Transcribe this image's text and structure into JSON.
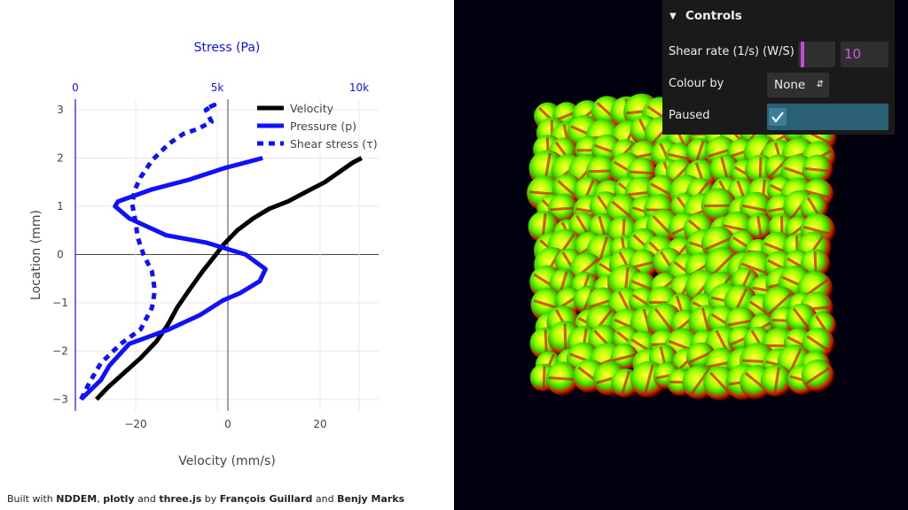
{
  "chart_data": {
    "type": "line",
    "xlabel": "Velocity (mm/s)",
    "ylabel": "Location (mm)",
    "x2label": "Stress (Pa)",
    "xlim": [
      -33,
      33
    ],
    "x2lim": [
      0,
      10000
    ],
    "ylim": [
      -3.1,
      3.1
    ],
    "x_ticks": [
      -20,
      0,
      20
    ],
    "x_tick_labels": [
      "−20",
      "0",
      "20"
    ],
    "x2_ticks": [
      0,
      5000,
      10000
    ],
    "x2_tick_labels": [
      "0",
      "5k",
      "10k"
    ],
    "y_ticks": [
      -3,
      -2,
      -1,
      0,
      1,
      2,
      3
    ],
    "y_tick_labels": [
      "−3",
      "−2",
      "−1",
      "0",
      "1",
      "2",
      "3"
    ],
    "legend_position": "top-right",
    "grid": true,
    "series": [
      {
        "name": "Velocity",
        "axis": "bottom",
        "color": "#000000",
        "style": "solid",
        "x": [
          -28.5,
          -26,
          -22.5,
          -19,
          -15.5,
          -13,
          -11,
          -8.5,
          -5.5,
          -3,
          -1,
          2,
          5.5,
          9,
          13,
          17,
          21,
          24,
          27,
          29
        ],
        "y": [
          -3,
          -2.75,
          -2.45,
          -2.15,
          -1.8,
          -1.45,
          -1.1,
          -0.75,
          -0.35,
          -0.05,
          0.2,
          0.5,
          0.75,
          0.95,
          1.1,
          1.3,
          1.5,
          1.7,
          1.9,
          2.0
        ]
      },
      {
        "name": "Pressure (p)",
        "axis": "top",
        "color": "#1010ff",
        "style": "solid",
        "x": [
          200,
          900,
          1200,
          1900,
          3300,
          4400,
          5200,
          5800,
          6500,
          6700,
          6000,
          4600,
          3200,
          1900,
          1400,
          1500,
          2700,
          4000,
          5300,
          6600
        ],
        "y": [
          -3,
          -2.6,
          -2.3,
          -1.85,
          -1.55,
          -1.25,
          -0.95,
          -0.8,
          -0.55,
          -0.3,
          0,
          0.25,
          0.4,
          0.75,
          1.0,
          1.1,
          1.35,
          1.55,
          1.8,
          2.0
        ]
      },
      {
        "name": "Shear stress (τ)",
        "axis": "top",
        "color": "#1010ff",
        "style": "dashed",
        "x": [
          200,
          500,
          900,
          1600,
          2300,
          2700,
          2800,
          2700,
          2400,
          2200,
          2100,
          2000,
          2100,
          2300,
          2700,
          3300,
          3800,
          4300,
          4800,
          4600,
          4900,
          4700
        ],
        "y": [
          -3,
          -2.65,
          -2.25,
          -1.85,
          -1.55,
          -1.1,
          -0.75,
          -0.35,
          0,
          0.35,
          0.75,
          1.05,
          1.35,
          1.6,
          1.95,
          2.3,
          2.5,
          2.6,
          2.75,
          3.0,
          3.1,
          3.05
        ]
      }
    ]
  },
  "credits": {
    "prefix": "Built with ",
    "nddem": "NDDEM",
    "sep1": ", ",
    "plotly": "plotly",
    "sep2": " and ",
    "threejs": "three.js",
    "by": " by ",
    "author1": "François Guillard",
    "and": " and ",
    "author2": "Benjy Marks"
  },
  "controls": {
    "title": "Controls",
    "shear_rate_label": "Shear rate (1/s) (W/S)",
    "shear_rate_value": "10",
    "shear_rate_slider_fraction": 0.03,
    "colour_by_label": "Colour by",
    "colour_by_value": "None",
    "paused_label": "Paused",
    "paused_checked": true
  },
  "colors": {
    "accent": "#c94ad6",
    "panel_bg": "#1a1a1a",
    "checkbox_bar": "#2b5f75",
    "scene_bg": "#00000f"
  }
}
